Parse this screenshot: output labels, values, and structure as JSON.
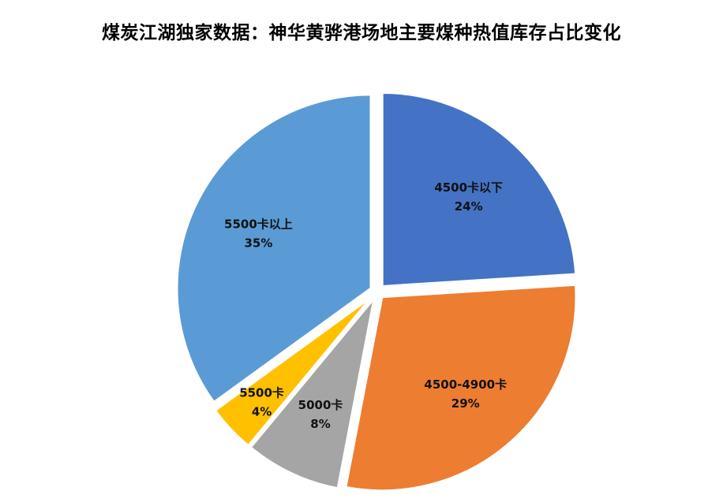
{
  "chart_data": {
    "type": "pie",
    "title": "煤炭江湖独家数据：神华黄骅港场地主要煤种热值库存占比变化",
    "legend": "none",
    "slices": [
      {
        "label": "4500卡以下",
        "percent_label": "24%",
        "value": 24,
        "color": "#4472C4"
      },
      {
        "label": "4500-4900卡",
        "percent_label": "29%",
        "value": 29,
        "color": "#ED7D31"
      },
      {
        "label": "5000卡",
        "percent_label": "8%",
        "value": 8,
        "color": "#A5A5A5"
      },
      {
        "label": "5500卡",
        "percent_label": "4%",
        "value": 4,
        "color": "#FFC000"
      },
      {
        "label": "5500卡以上",
        "percent_label": "35%",
        "value": 35,
        "color": "#5B9BD5"
      }
    ]
  }
}
